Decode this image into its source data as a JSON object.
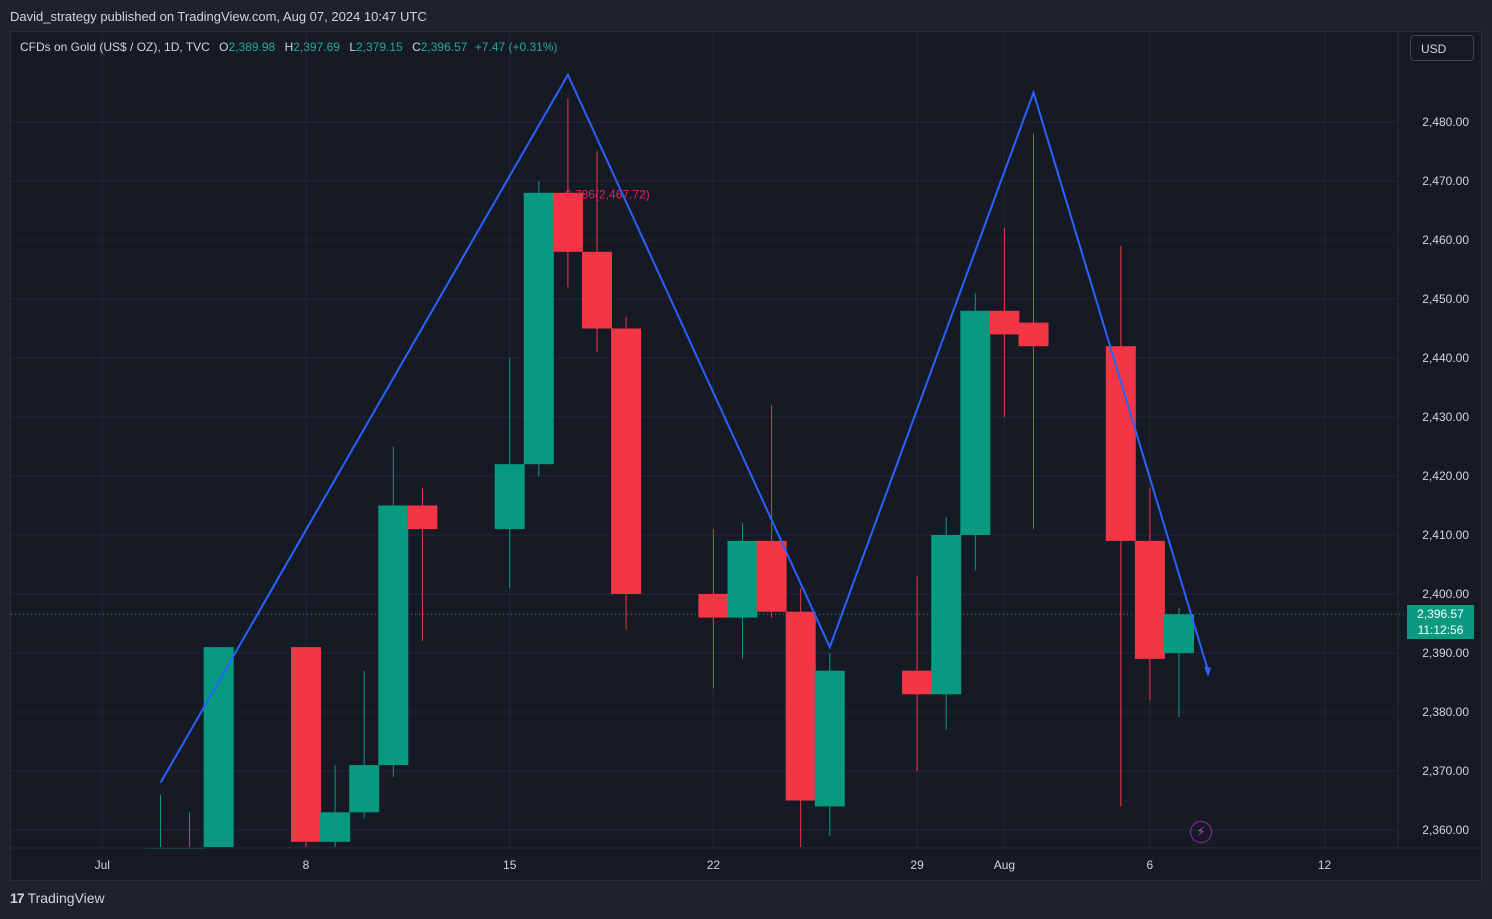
{
  "header": {
    "publish_text": "David_strategy published on TradingView.com, Aug 07, 2024 10:47 UTC"
  },
  "legend": {
    "symbol_text": "CFDs on Gold (US$ / OZ), 1D, TVC",
    "o_label": "O",
    "o_value": "2,389.98",
    "h_label": "H",
    "h_value": "2,397.69",
    "l_label": "L",
    "l_value": "2,379.15",
    "c_label": "C",
    "c_value": "2,396.57",
    "change": "+7.47 (+0.31%)"
  },
  "currency_button": "USD",
  "last_price": {
    "price": "2,396.57",
    "countdown": "11:12:56"
  },
  "fib_label": "0.786(2,467.72)",
  "footer": {
    "brand": "TradingView",
    "logo": "17"
  },
  "colors": {
    "up": "#089981",
    "down": "#f23645",
    "pattern_line": "#2962ff",
    "background": "#161a25",
    "grid": "#232733"
  },
  "chart_data": {
    "type": "candlestick",
    "symbol": "CFDs on Gold (US$ / OZ)",
    "timeframe": "1D",
    "y_ticks": [
      2360,
      2370,
      2380,
      2390,
      2400,
      2410,
      2420,
      2430,
      2440,
      2450,
      2460,
      2470,
      2480
    ],
    "y_tick_labels": [
      "2,360.00",
      "2,370.00",
      "2,380.00",
      "2,390.00",
      "2,400.00",
      "2,410.00",
      "2,420.00",
      "2,430.00",
      "2,440.00",
      "2,450.00",
      "2,460.00",
      "2,470.00",
      "2,480.00"
    ],
    "ylim": [
      2357,
      2491
    ],
    "x_labels": [
      {
        "label": "Jul",
        "date": "2024-07-01"
      },
      {
        "label": "8",
        "date": "2024-07-08"
      },
      {
        "label": "15",
        "date": "2024-07-15"
      },
      {
        "label": "22",
        "date": "2024-07-22"
      },
      {
        "label": "29",
        "date": "2024-07-29"
      },
      {
        "label": "Aug",
        "date": "2024-08-01"
      },
      {
        "label": "6",
        "date": "2024-08-06"
      },
      {
        "label": "12",
        "date": "2024-08-12"
      }
    ],
    "candles": [
      {
        "date": "2024-07-03",
        "o": 2357,
        "h": 2366,
        "l": 2353,
        "c": 2357
      },
      {
        "date": "2024-07-04",
        "o": 2357,
        "h": 2363,
        "l": 2351,
        "c": 2357
      },
      {
        "date": "2024-07-05",
        "o": 2357,
        "h": 2391,
        "l": 2350,
        "c": 2391
      },
      {
        "date": "2024-07-08",
        "o": 2391,
        "h": 2391,
        "l": 2354,
        "c": 2358
      },
      {
        "date": "2024-07-09",
        "o": 2358,
        "h": 2371,
        "l": 2357,
        "c": 2363
      },
      {
        "date": "2024-07-10",
        "o": 2363,
        "h": 2387,
        "l": 2362,
        "c": 2371
      },
      {
        "date": "2024-07-11",
        "o": 2371,
        "h": 2425,
        "l": 2369,
        "c": 2415
      },
      {
        "date": "2024-07-12",
        "o": 2415,
        "h": 2418,
        "l": 2392,
        "c": 2411
      },
      {
        "date": "2024-07-15",
        "o": 2411,
        "h": 2440,
        "l": 2401,
        "c": 2422
      },
      {
        "date": "2024-07-16",
        "o": 2422,
        "h": 2470,
        "l": 2420,
        "c": 2468
      },
      {
        "date": "2024-07-17",
        "o": 2468,
        "h": 2484,
        "l": 2452,
        "c": 2458
      },
      {
        "date": "2024-07-18",
        "o": 2458,
        "h": 2475,
        "l": 2441,
        "c": 2445
      },
      {
        "date": "2024-07-19",
        "o": 2445,
        "h": 2447,
        "l": 2394,
        "c": 2400
      },
      {
        "date": "2024-07-22",
        "o": 2400,
        "h": 2411,
        "l": 2384,
        "c": 2396
      },
      {
        "date": "2024-07-23",
        "o": 2396,
        "h": 2412,
        "l": 2389,
        "c": 2409
      },
      {
        "date": "2024-07-24",
        "o": 2409,
        "h": 2432,
        "l": 2396,
        "c": 2397
      },
      {
        "date": "2024-07-25",
        "o": 2397,
        "h": 2401,
        "l": 2357,
        "c": 2365
      },
      {
        "date": "2024-07-26",
        "o": 2364,
        "h": 2390,
        "l": 2359,
        "c": 2387
      },
      {
        "date": "2024-07-29",
        "o": 2387,
        "h": 2403,
        "l": 2370,
        "c": 2383
      },
      {
        "date": "2024-07-30",
        "o": 2383,
        "h": 2413,
        "l": 2377,
        "c": 2410
      },
      {
        "date": "2024-07-31",
        "o": 2410,
        "h": 2451,
        "l": 2404,
        "c": 2448
      },
      {
        "date": "2024-08-01",
        "o": 2448,
        "h": 2462,
        "l": 2430,
        "c": 2444
      },
      {
        "date": "2024-08-02",
        "o": 2446,
        "h": 2478,
        "l": 2411,
        "c": 2442
      },
      {
        "date": "2024-08-05",
        "o": 2442,
        "h": 2459,
        "l": 2364,
        "c": 2409
      },
      {
        "date": "2024-08-06",
        "o": 2409,
        "h": 2418,
        "l": 2382,
        "c": 2389
      },
      {
        "date": "2024-08-07",
        "o": 2389.98,
        "h": 2397.69,
        "l": 2379.15,
        "c": 2396.57
      }
    ],
    "pattern_line": [
      {
        "date": "2024-07-03",
        "price": 2368
      },
      {
        "date": "2024-07-17",
        "price": 2488
      },
      {
        "date": "2024-07-26",
        "price": 2391
      },
      {
        "date": "2024-08-02",
        "price": 2485
      },
      {
        "date": "2024-08-08",
        "price": 2387
      }
    ],
    "last_price": 2396.57
  }
}
